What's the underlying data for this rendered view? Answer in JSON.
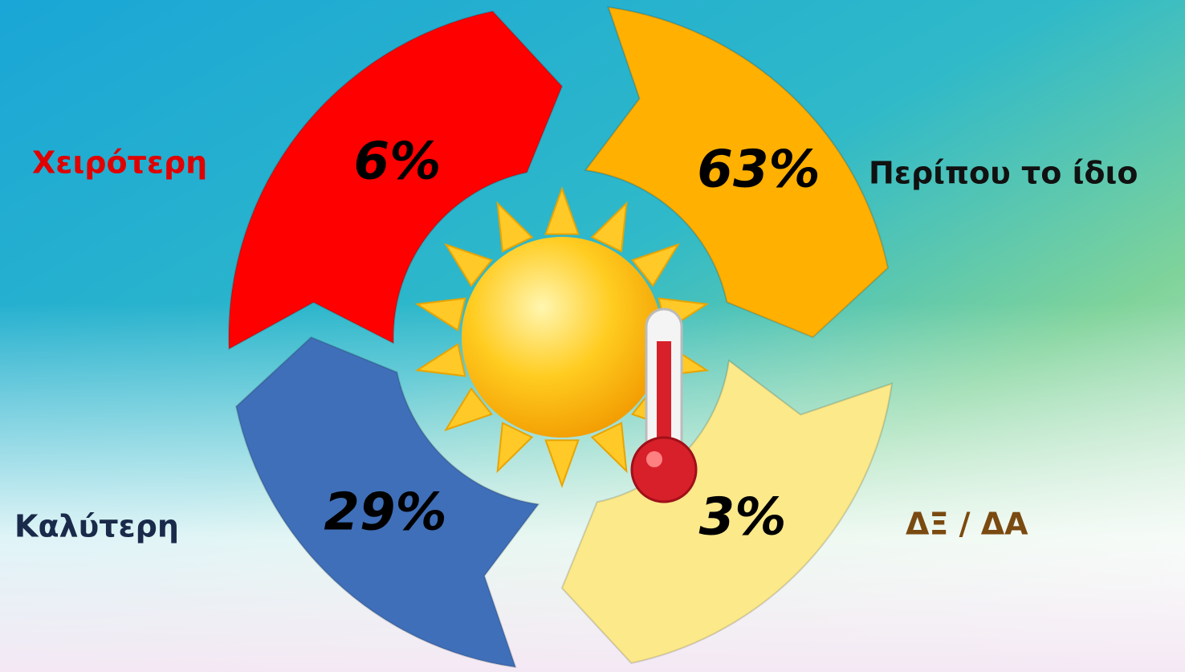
{
  "segments": [
    {
      "label": "Χειρότερη",
      "value": "6%",
      "color": "#ff0000",
      "label_color": "#e00000"
    },
    {
      "label": "Περίπου το ίδιο",
      "value": "63%",
      "color": "#ffb000",
      "label_color": "#111111"
    },
    {
      "label": "ΔΞ / ΔΑ",
      "value": "3%",
      "color": "#fbe98a",
      "label_color": "#7a4a10"
    },
    {
      "label": "Καλύτερη",
      "value": "29%",
      "color": "#3f6fb8",
      "label_color": "#1a2a4a"
    }
  ]
}
